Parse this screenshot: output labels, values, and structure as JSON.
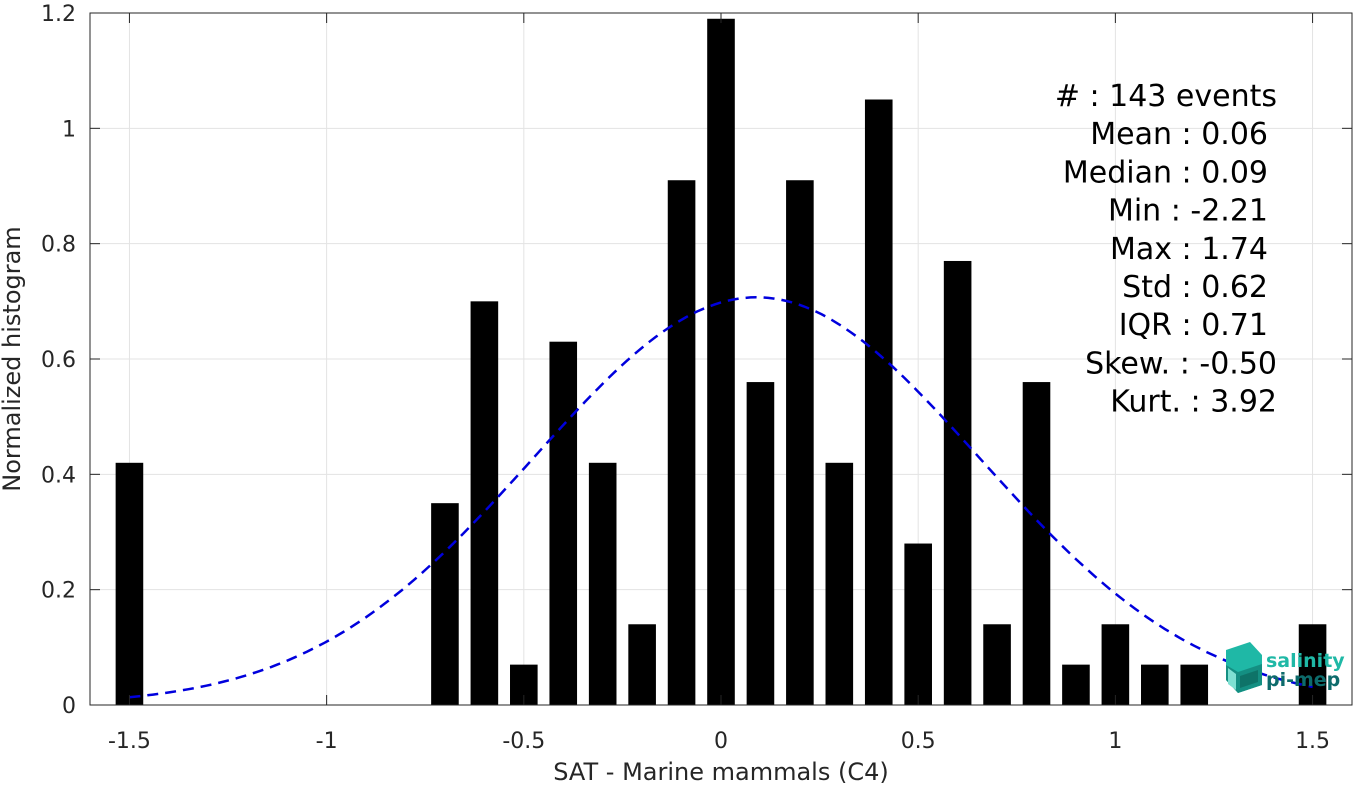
{
  "chart_data": {
    "type": "bar",
    "xlabel": "SAT - Marine mammals (C4)",
    "ylabel": "Normalized histogram",
    "xlim": [
      -1.6,
      1.6
    ],
    "ylim": [
      0,
      1.2
    ],
    "xticks": [
      -1.5,
      -1,
      -0.5,
      0,
      0.5,
      1,
      1.5
    ],
    "xtick_labels": [
      "-1.5",
      "-1",
      "-0.5",
      "0",
      "0.5",
      "1",
      "1.5"
    ],
    "yticks": [
      0,
      0.2,
      0.4,
      0.6,
      0.8,
      1,
      1.2
    ],
    "ytick_labels": [
      "0",
      "0.2",
      "0.4",
      "0.6",
      "0.8",
      "1",
      "1.2"
    ],
    "grid": true,
    "bar_color": "#000000",
    "bars": [
      {
        "x": -1.5,
        "value": 0.42
      },
      {
        "x": -0.7,
        "value": 0.35
      },
      {
        "x": -0.6,
        "value": 0.7
      },
      {
        "x": -0.5,
        "value": 0.07
      },
      {
        "x": -0.4,
        "value": 0.63
      },
      {
        "x": -0.3,
        "value": 0.42
      },
      {
        "x": -0.2,
        "value": 0.14
      },
      {
        "x": -0.1,
        "value": 0.91
      },
      {
        "x": 0.0,
        "value": 1.19
      },
      {
        "x": 0.1,
        "value": 0.56
      },
      {
        "x": 0.2,
        "value": 0.91
      },
      {
        "x": 0.3,
        "value": 0.42
      },
      {
        "x": 0.4,
        "value": 1.05
      },
      {
        "x": 0.5,
        "value": 0.28
      },
      {
        "x": 0.6,
        "value": 0.77
      },
      {
        "x": 0.7,
        "value": 0.14
      },
      {
        "x": 0.8,
        "value": 0.56
      },
      {
        "x": 0.9,
        "value": 0.07
      },
      {
        "x": 1.0,
        "value": 0.14
      },
      {
        "x": 1.1,
        "value": 0.07
      },
      {
        "x": 1.2,
        "value": 0.07
      },
      {
        "x": 1.5,
        "value": 0.14
      }
    ],
    "fit_curve": {
      "style": "dashed",
      "color": "#0000dd",
      "mean": 0.09,
      "std": 0.565,
      "peak": 0.707,
      "x_range": [
        -1.5,
        1.5
      ]
    },
    "stats": [
      {
        "label": "#  : 143 events"
      },
      {
        "label": "Mean : 0.06"
      },
      {
        "label": "Median : 0.09"
      },
      {
        "label": "Min : -2.21"
      },
      {
        "label": "Max : 1.74"
      },
      {
        "label": "Std : 0.62"
      },
      {
        "label": "IQR : 0.71"
      },
      {
        "label": "Skew. : -0.50"
      },
      {
        "label": "Kurt. : 3.92"
      }
    ]
  },
  "logo": {
    "line1": "salinity",
    "line2": "pi-mep",
    "color1": "#1fb8a6",
    "color2": "#0d6b6b",
    "icon": "waves-cube-icon"
  }
}
